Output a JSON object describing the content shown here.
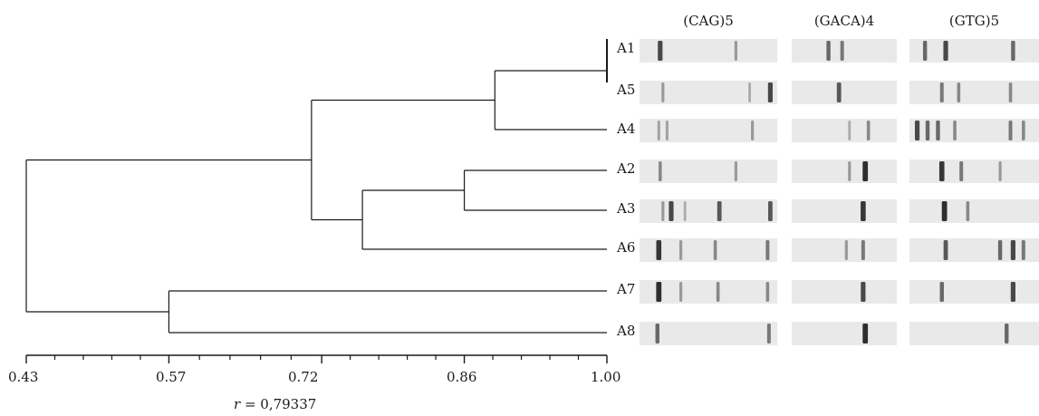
{
  "chart_data": {
    "type": "dendrogram",
    "axis": {
      "ticks": [
        "0.43",
        "0.57",
        "0.72",
        "0.86",
        "1.00"
      ],
      "range": [
        0.43,
        1.0
      ],
      "minor_ticks_between": 4
    },
    "statistic": {
      "symbol": "r",
      "text": " = 0,79337"
    },
    "leaves": [
      "A1",
      "A5",
      "A4",
      "A2",
      "A3",
      "A6",
      "A7",
      "A8"
    ],
    "merges": [
      {
        "children": [
          "A1",
          "A5"
        ],
        "similarity": 1.0
      },
      {
        "children": [
          "A1-A5",
          "A4"
        ],
        "similarity": 0.89
      },
      {
        "children": [
          "A2",
          "A3"
        ],
        "similarity": 0.86
      },
      {
        "children": [
          "A2-A3",
          "A6"
        ],
        "similarity": 0.76
      },
      {
        "children": [
          "A1-A5-A4",
          "A2-A3-A6"
        ],
        "similarity": 0.71
      },
      {
        "children": [
          "A7",
          "A8"
        ],
        "similarity": 0.57
      },
      {
        "children": [
          "A1-A5-A4-A2-A3-A6",
          "A7-A8"
        ],
        "similarity": 0.43
      }
    ]
  },
  "gel_panels": {
    "primers": [
      "(CAG)5",
      "(GACA)4",
      "(GTG)5"
    ],
    "bands": {
      "(CAG)5": {
        "A1": [
          [
            0.15,
            0.8
          ],
          [
            0.7,
            0.3
          ]
        ],
        "A5": [
          [
            0.17,
            0.3
          ],
          [
            0.95,
            0.8
          ],
          [
            0.8,
            0.2
          ]
        ],
        "A4": [
          [
            0.14,
            0.25
          ],
          [
            0.2,
            0.25
          ],
          [
            0.82,
            0.3
          ]
        ],
        "A2": [
          [
            0.15,
            0.4
          ],
          [
            0.7,
            0.3
          ]
        ],
        "A3": [
          [
            0.17,
            0.3
          ],
          [
            0.23,
            0.8
          ],
          [
            0.33,
            0.2
          ],
          [
            0.58,
            0.7
          ],
          [
            0.95,
            0.7
          ]
        ],
        "A6": [
          [
            0.14,
            0.9
          ],
          [
            0.3,
            0.3
          ],
          [
            0.55,
            0.4
          ],
          [
            0.93,
            0.5
          ]
        ],
        "A7": [
          [
            0.14,
            0.95
          ],
          [
            0.3,
            0.3
          ],
          [
            0.57,
            0.4
          ],
          [
            0.93,
            0.4
          ]
        ],
        "A8": [
          [
            0.13,
            0.6
          ],
          [
            0.94,
            0.5
          ]
        ]
      },
      "(GACA)4": {
        "A1": [
          [
            0.35,
            0.6
          ],
          [
            0.48,
            0.5
          ]
        ],
        "A5": [
          [
            0.45,
            0.7
          ]
        ],
        "A4": [
          [
            0.55,
            0.2
          ],
          [
            0.73,
            0.4
          ]
        ],
        "A2": [
          [
            0.55,
            0.3
          ],
          [
            0.7,
            0.95
          ]
        ],
        "A3": [
          [
            0.68,
            0.9
          ]
        ],
        "A6": [
          [
            0.52,
            0.3
          ],
          [
            0.68,
            0.5
          ]
        ],
        "A7": [
          [
            0.68,
            0.8
          ]
        ],
        "A8": [
          [
            0.7,
            0.95
          ]
        ]
      },
      "(GTG)5": {
        "A1": [
          [
            0.12,
            0.6
          ],
          [
            0.28,
            0.8
          ],
          [
            0.8,
            0.6
          ]
        ],
        "A5": [
          [
            0.25,
            0.5
          ],
          [
            0.38,
            0.4
          ],
          [
            0.78,
            0.4
          ]
        ],
        "A4": [
          [
            0.06,
            0.8
          ],
          [
            0.14,
            0.6
          ],
          [
            0.22,
            0.6
          ],
          [
            0.35,
            0.4
          ],
          [
            0.78,
            0.5
          ],
          [
            0.88,
            0.4
          ]
        ],
        "A2": [
          [
            0.25,
            0.9
          ],
          [
            0.4,
            0.5
          ],
          [
            0.7,
            0.3
          ]
        ],
        "A3": [
          [
            0.27,
            0.95
          ],
          [
            0.45,
            0.4
          ]
        ],
        "A6": [
          [
            0.28,
            0.7
          ],
          [
            0.7,
            0.6
          ],
          [
            0.8,
            0.8
          ],
          [
            0.88,
            0.5
          ]
        ],
        "A7": [
          [
            0.25,
            0.6
          ],
          [
            0.8,
            0.8
          ]
        ],
        "A8": [
          [
            0.75,
            0.6
          ]
        ]
      }
    }
  },
  "colors": {
    "line": "#1a1a1a",
    "gel_background": "#e9e9e9",
    "band": "#1c1c1c"
  }
}
